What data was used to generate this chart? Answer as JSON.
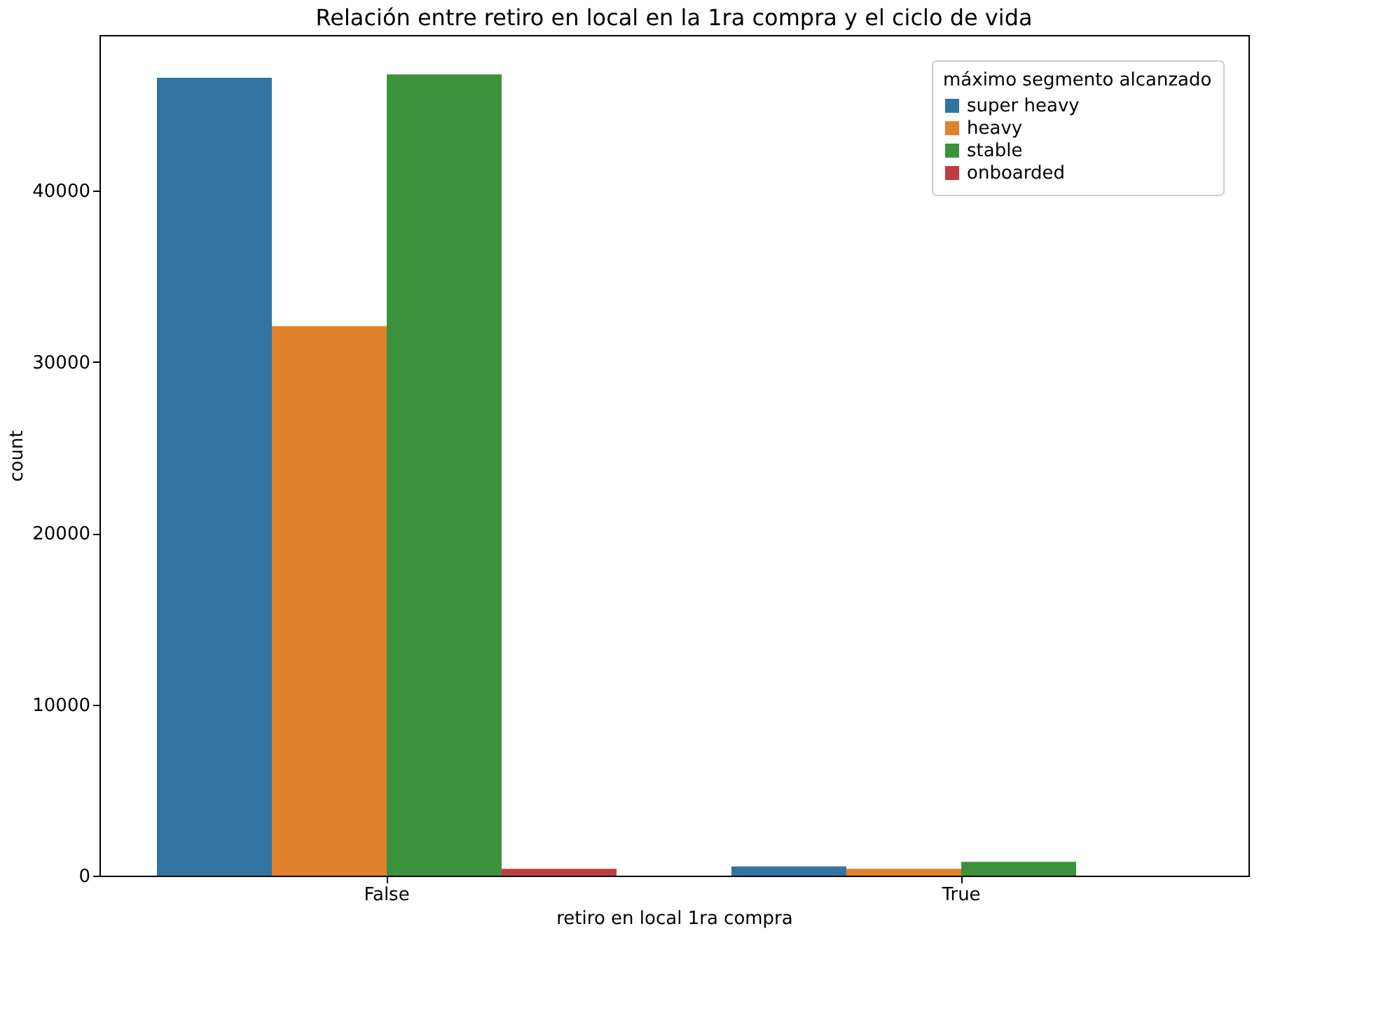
{
  "chart_data": {
    "type": "bar",
    "title": "Relación entre retiro en local en la 1ra compra y el ciclo de vida",
    "xlabel": "retiro en local 1ra compra",
    "ylabel": "count",
    "legend_title": "máximo segmento alcanzado",
    "categories": [
      "False",
      "True"
    ],
    "series": [
      {
        "name": "super heavy",
        "color": "#3274a1",
        "values": [
          46600,
          540
        ]
      },
      {
        "name": "heavy",
        "color": "#e1812c",
        "values": [
          32100,
          400
        ]
      },
      {
        "name": "stable",
        "color": "#3a923a",
        "values": [
          46800,
          810
        ]
      },
      {
        "name": "onboarded",
        "color": "#c03d3e",
        "values": [
          400,
          0
        ]
      }
    ],
    "ylim": [
      0,
      49100
    ],
    "yticks": [
      0,
      10000,
      20000,
      30000,
      40000
    ],
    "grid": false,
    "legend": "top right"
  }
}
